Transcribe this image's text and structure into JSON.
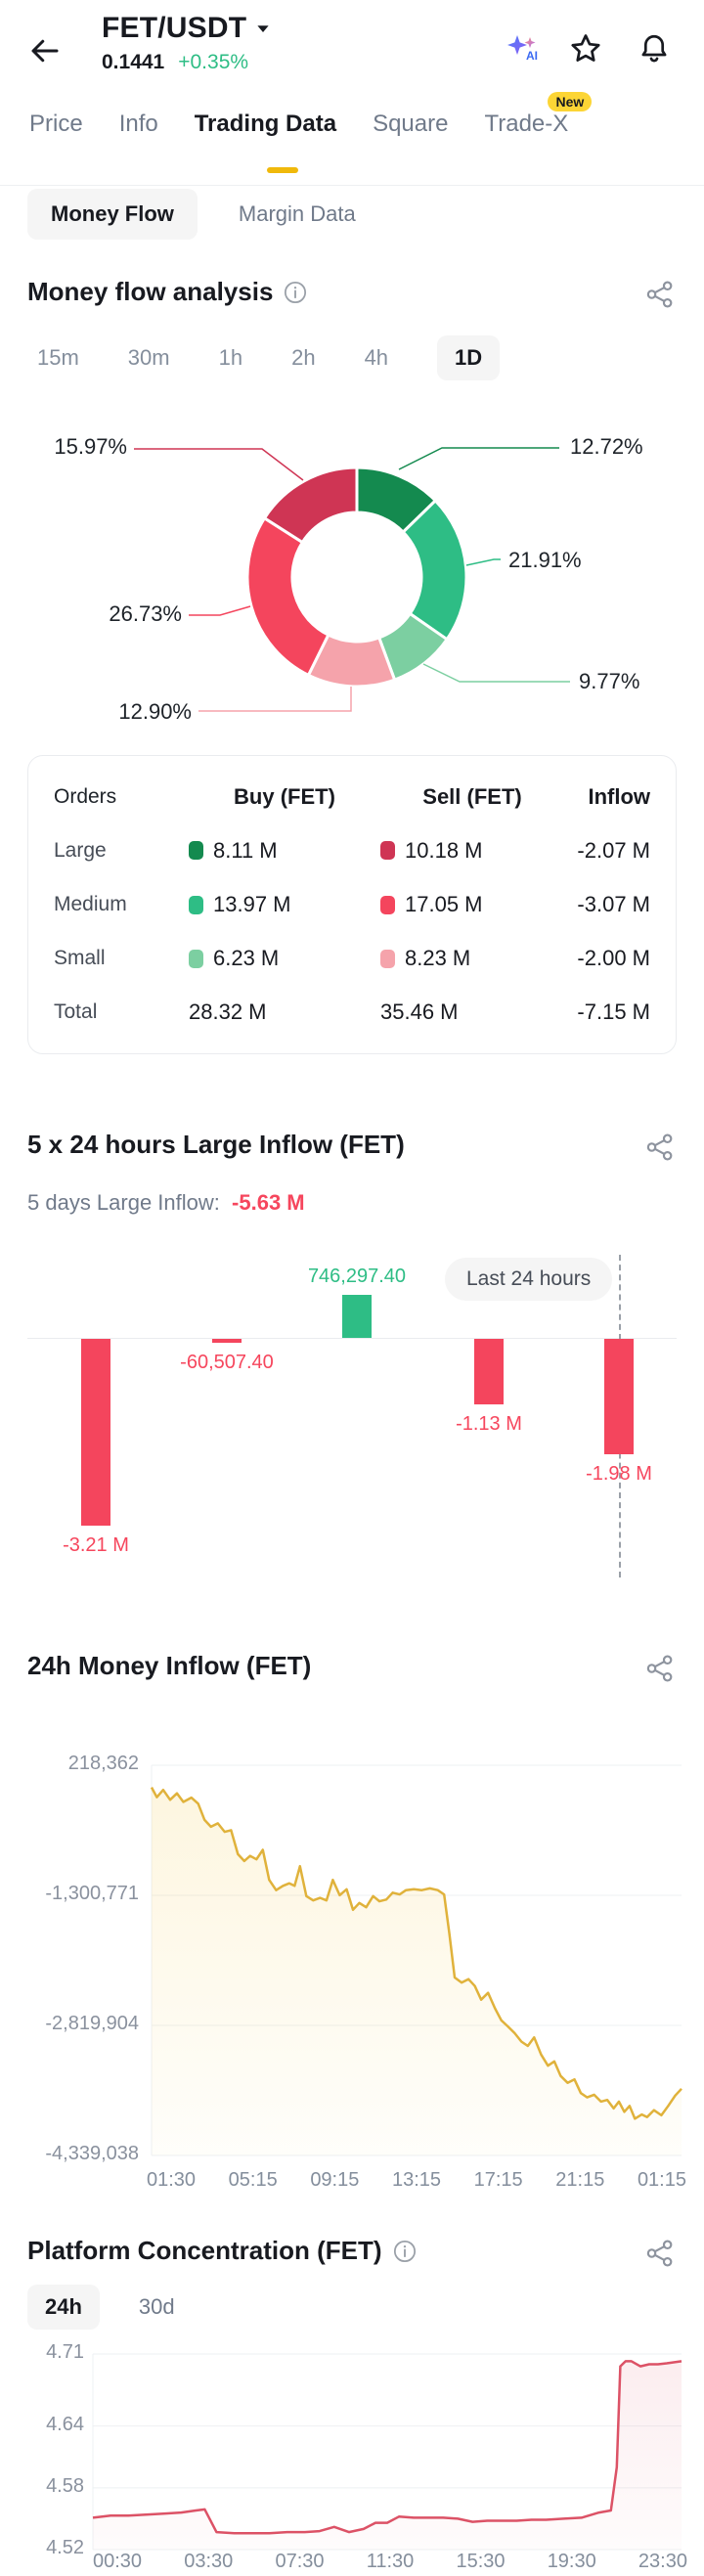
{
  "header": {
    "symbol": "FET/USDT",
    "price": "0.1441",
    "change": "+0.35%"
  },
  "nav_tabs": [
    {
      "label": "Price"
    },
    {
      "label": "Info"
    },
    {
      "label": "Trading Data",
      "active": true
    },
    {
      "label": "Square"
    },
    {
      "label": "Trade-X",
      "badge": "New"
    }
  ],
  "subnav": {
    "money_flow": "Money Flow",
    "margin_data": "Margin Data"
  },
  "money_flow": {
    "title": "Money flow analysis",
    "intervals": [
      "15m",
      "30m",
      "1h",
      "2h",
      "4h",
      "1D"
    ],
    "active_interval": "1D",
    "chart_data": {
      "type": "pie",
      "title": "Money flow analysis",
      "segments": [
        {
          "name": "large-buy",
          "label": "12.72%",
          "value": 12.72,
          "color": "#148a4f"
        },
        {
          "name": "medium-buy",
          "label": "21.91%",
          "value": 21.91,
          "color": "#2ebd85"
        },
        {
          "name": "small-buy",
          "label": "9.77%",
          "value": 9.77,
          "color": "#7ccfa1"
        },
        {
          "name": "small-sell",
          "label": "12.90%",
          "value": 12.9,
          "color": "#f5a3ab"
        },
        {
          "name": "medium-sell",
          "label": "26.73%",
          "value": 26.73,
          "color": "#f4455d"
        },
        {
          "name": "large-sell",
          "label": "15.97%",
          "value": 15.97,
          "color": "#cf3554"
        }
      ]
    },
    "table": {
      "headers": [
        "Orders",
        "Buy (FET)",
        "Sell (FET)",
        "Inflow"
      ],
      "rows": [
        {
          "label": "Large",
          "buy": "8.11 M",
          "buy_color": "#148a4f",
          "sell": "10.18 M",
          "sell_color": "#cf3554",
          "inflow": "-2.07 M"
        },
        {
          "label": "Medium",
          "buy": "13.97 M",
          "buy_color": "#2ebd85",
          "sell": "17.05 M",
          "sell_color": "#f4455d",
          "inflow": "-3.07 M"
        },
        {
          "label": "Small",
          "buy": "6.23 M",
          "buy_color": "#7ccfa1",
          "sell": "8.23 M",
          "sell_color": "#f5a3ab",
          "inflow": "-2.00 M"
        },
        {
          "label": "Total",
          "buy": "28.32 M",
          "buy_color": null,
          "sell": "35.46 M",
          "sell_color": null,
          "inflow": "-7.15 M"
        }
      ]
    }
  },
  "large_inflow": {
    "title": "5 x 24 hours Large Inflow (FET)",
    "subtitle_label": "5 days Large Inflow:",
    "subtitle_value": "-5.63 M",
    "annotation": "Last 24 hours",
    "chart_data": {
      "type": "bar",
      "values": [
        -3210000,
        -60507.4,
        746297.4,
        -1130000,
        -1980000
      ],
      "labels": [
        "-3.21 M",
        "-60,507.40",
        "746,297.40",
        "-1.13 M",
        "-1.98 M"
      ],
      "colors": [
        "#f4455d",
        "#f4455d",
        "#2ebd85",
        "#f4455d",
        "#f4455d"
      ],
      "label_colors": [
        "#f6465d",
        "#f6465d",
        "#2ebd85",
        "#f6465d",
        "#f6465d"
      ]
    }
  },
  "money_inflow_24h": {
    "title": "24h Money Inflow (FET)",
    "chart_data": {
      "type": "area",
      "line_color": "#e0b23b",
      "fill_top": "rgba(240,185,11,0.13)",
      "fill_bottom": "rgba(240,185,11,0.02)",
      "y_ticks": [
        {
          "label": "218,362",
          "value": 218362
        },
        {
          "label": "-1,300,771",
          "value": -1300771
        },
        {
          "label": "-2,819,904",
          "value": -2819904
        },
        {
          "label": "-4,339,038",
          "value": -4339038
        }
      ],
      "x_ticks": [
        "01:30",
        "05:15",
        "09:15",
        "13:15",
        "17:15",
        "21:15",
        "01:15"
      ],
      "points": [
        [
          0.0,
          -40000
        ],
        [
          0.01,
          -155000
        ],
        [
          0.022,
          -70000
        ],
        [
          0.035,
          -185000
        ],
        [
          0.048,
          -110000
        ],
        [
          0.06,
          -210000
        ],
        [
          0.075,
          -160000
        ],
        [
          0.088,
          -230000
        ],
        [
          0.1,
          -420000
        ],
        [
          0.112,
          -500000
        ],
        [
          0.125,
          -460000
        ],
        [
          0.138,
          -560000
        ],
        [
          0.15,
          -540000
        ],
        [
          0.163,
          -820000
        ],
        [
          0.175,
          -900000
        ],
        [
          0.186,
          -840000
        ],
        [
          0.198,
          -880000
        ],
        [
          0.21,
          -770000
        ],
        [
          0.222,
          -1120000
        ],
        [
          0.235,
          -1240000
        ],
        [
          0.248,
          -1190000
        ],
        [
          0.26,
          -1160000
        ],
        [
          0.27,
          -1190000
        ],
        [
          0.28,
          -960000
        ],
        [
          0.292,
          -1310000
        ],
        [
          0.305,
          -1360000
        ],
        [
          0.318,
          -1330000
        ],
        [
          0.33,
          -1360000
        ],
        [
          0.342,
          -1120000
        ],
        [
          0.355,
          -1300000
        ],
        [
          0.368,
          -1230000
        ],
        [
          0.38,
          -1470000
        ],
        [
          0.392,
          -1390000
        ],
        [
          0.405,
          -1440000
        ],
        [
          0.418,
          -1310000
        ],
        [
          0.43,
          -1370000
        ],
        [
          0.443,
          -1350000
        ],
        [
          0.455,
          -1270000
        ],
        [
          0.468,
          -1290000
        ],
        [
          0.48,
          -1240000
        ],
        [
          0.495,
          -1230000
        ],
        [
          0.51,
          -1240000
        ],
        [
          0.525,
          -1220000
        ],
        [
          0.54,
          -1240000
        ],
        [
          0.552,
          -1290000
        ],
        [
          0.562,
          -1750000
        ],
        [
          0.572,
          -2260000
        ],
        [
          0.585,
          -2320000
        ],
        [
          0.598,
          -2280000
        ],
        [
          0.61,
          -2360000
        ],
        [
          0.622,
          -2520000
        ],
        [
          0.635,
          -2440000
        ],
        [
          0.648,
          -2620000
        ],
        [
          0.66,
          -2760000
        ],
        [
          0.672,
          -2830000
        ],
        [
          0.685,
          -2910000
        ],
        [
          0.698,
          -3010000
        ],
        [
          0.71,
          -3060000
        ],
        [
          0.722,
          -2960000
        ],
        [
          0.735,
          -3160000
        ],
        [
          0.748,
          -3290000
        ],
        [
          0.76,
          -3240000
        ],
        [
          0.772,
          -3410000
        ],
        [
          0.785,
          -3490000
        ],
        [
          0.798,
          -3450000
        ],
        [
          0.81,
          -3610000
        ],
        [
          0.822,
          -3660000
        ],
        [
          0.835,
          -3630000
        ],
        [
          0.848,
          -3710000
        ],
        [
          0.86,
          -3690000
        ],
        [
          0.872,
          -3790000
        ],
        [
          0.882,
          -3710000
        ],
        [
          0.892,
          -3830000
        ],
        [
          0.902,
          -3760000
        ],
        [
          0.912,
          -3910000
        ],
        [
          0.925,
          -3860000
        ],
        [
          0.935,
          -3890000
        ],
        [
          0.948,
          -3810000
        ],
        [
          0.962,
          -3870000
        ],
        [
          0.975,
          -3760000
        ],
        [
          0.988,
          -3640000
        ],
        [
          1.0,
          -3560000
        ]
      ]
    }
  },
  "platform_concentration": {
    "title": "Platform Concentration (FET)",
    "tabs": [
      "24h",
      "30d"
    ],
    "active_tab": "24h",
    "chart_data": {
      "type": "area",
      "line_color": "#dc5266",
      "fill_top": "rgba(220,82,102,0.10)",
      "fill_bottom": "rgba(220,82,102,0.02)",
      "y_ticks": [
        {
          "label": "4.71",
          "value": 4.71
        },
        {
          "label": "4.64",
          "value": 4.64
        },
        {
          "label": "4.58",
          "value": 4.58
        },
        {
          "label": "4.52",
          "value": 4.52
        }
      ],
      "x_ticks": [
        "00:30",
        "03:30",
        "07:30",
        "11:30",
        "15:30",
        "19:30",
        "23:30"
      ],
      "points": [
        [
          0.0,
          4.551
        ],
        [
          0.03,
          4.553
        ],
        [
          0.06,
          4.553
        ],
        [
          0.09,
          4.554
        ],
        [
          0.12,
          4.555
        ],
        [
          0.15,
          4.556
        ],
        [
          0.175,
          4.558
        ],
        [
          0.19,
          4.559
        ],
        [
          0.21,
          4.537
        ],
        [
          0.24,
          4.536
        ],
        [
          0.27,
          4.536
        ],
        [
          0.3,
          4.536
        ],
        [
          0.33,
          4.537
        ],
        [
          0.36,
          4.537
        ],
        [
          0.385,
          4.538
        ],
        [
          0.41,
          4.542
        ],
        [
          0.435,
          4.537
        ],
        [
          0.46,
          4.54
        ],
        [
          0.48,
          4.546
        ],
        [
          0.5,
          4.546
        ],
        [
          0.52,
          4.552
        ],
        [
          0.545,
          4.551
        ],
        [
          0.57,
          4.551
        ],
        [
          0.595,
          4.551
        ],
        [
          0.62,
          4.55
        ],
        [
          0.645,
          4.547
        ],
        [
          0.67,
          4.548
        ],
        [
          0.695,
          4.548
        ],
        [
          0.72,
          4.548
        ],
        [
          0.745,
          4.549
        ],
        [
          0.77,
          4.549
        ],
        [
          0.8,
          4.55
        ],
        [
          0.83,
          4.551
        ],
        [
          0.86,
          4.556
        ],
        [
          0.88,
          4.558
        ],
        [
          0.89,
          4.6
        ],
        [
          0.896,
          4.698
        ],
        [
          0.905,
          4.703
        ],
        [
          0.915,
          4.703
        ],
        [
          0.93,
          4.698
        ],
        [
          0.945,
          4.7
        ],
        [
          0.96,
          4.7
        ],
        [
          0.975,
          4.701
        ],
        [
          1.0,
          4.703
        ]
      ]
    }
  },
  "colors": {
    "accent_yellow": "#f0b90b",
    "up_green": "#2ebd85",
    "down_red": "#f6465d",
    "text_secondary": "#707a8a"
  }
}
